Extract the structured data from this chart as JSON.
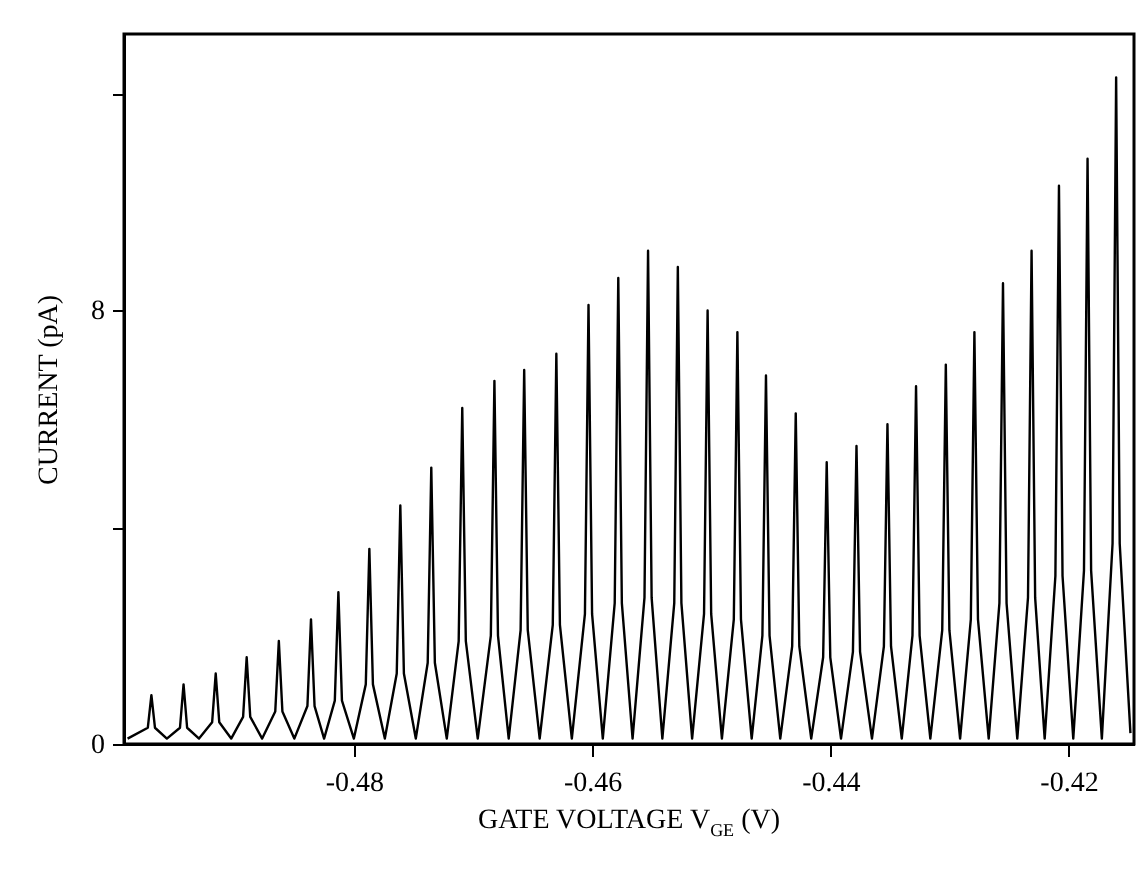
{
  "chart_data": {
    "type": "line",
    "xlabel": "GATE VOLTAGE V$_{GE}$ (V)",
    "ylabel": "CURRENT (pA)",
    "x": [
      -0.499,
      -0.4973,
      -0.497,
      -0.4967,
      -0.4957,
      -0.4946,
      -0.4943,
      -0.494,
      -0.493,
      -0.4919,
      -0.4916,
      -0.4913,
      -0.4903,
      -0.4893,
      -0.489,
      -0.4887,
      -0.4877,
      -0.4866,
      -0.4863,
      -0.486,
      -0.485,
      -0.4839,
      -0.4836,
      -0.4833,
      -0.4825,
      -0.4816,
      -0.4813,
      -0.481,
      -0.48,
      -0.479,
      -0.4787,
      -0.4784,
      -0.4774,
      -0.4764,
      -0.4761,
      -0.4758,
      -0.4748,
      -0.4738,
      -0.4735,
      -0.4732,
      -0.4722,
      -0.4712,
      -0.4709,
      -0.4706,
      -0.4696,
      -0.4685,
      -0.4682,
      -0.4679,
      -0.467,
      -0.466,
      -0.4657,
      -0.4654,
      -0.4644,
      -0.4633,
      -0.463,
      -0.4627,
      -0.4617,
      -0.4606,
      -0.4603,
      -0.46,
      -0.4591,
      -0.4581,
      -0.4578,
      -0.4575,
      -0.4566,
      -0.4556,
      -0.4553,
      -0.455,
      -0.4541,
      -0.4531,
      -0.4528,
      -0.4525,
      -0.4516,
      -0.4506,
      -0.4503,
      -0.45,
      -0.4491,
      -0.4481,
      -0.4478,
      -0.4475,
      -0.4466,
      -0.4457,
      -0.4454,
      -0.4451,
      -0.4442,
      -0.4432,
      -0.4429,
      -0.4426,
      -0.4416,
      -0.4406,
      -0.4403,
      -0.44,
      -0.4391,
      -0.4381,
      -0.4378,
      -0.4375,
      -0.4365,
      -0.4355,
      -0.4352,
      -0.4349,
      -0.434,
      -0.4331,
      -0.4328,
      -0.4325,
      -0.4316,
      -0.4306,
      -0.4303,
      -0.43,
      -0.4291,
      -0.4282,
      -0.4279,
      -0.4276,
      -0.4267,
      -0.4258,
      -0.4255,
      -0.4252,
      -0.4243,
      -0.4234,
      -0.4231,
      -0.4228,
      -0.422,
      -0.4211,
      -0.4208,
      -0.4205,
      -0.4196,
      -0.4187,
      -0.4184,
      -0.4181,
      -0.4172,
      -0.4163,
      -0.416,
      -0.4157,
      -0.4148
    ],
    "series": [
      {
        "color": "#000000",
        "values": [
          0.1,
          0.3,
          0.9,
          0.3,
          0.1,
          0.3,
          1.1,
          0.3,
          0.1,
          0.4,
          1.3,
          0.4,
          0.1,
          0.5,
          1.6,
          0.5,
          0.1,
          0.6,
          1.9,
          0.6,
          0.1,
          0.7,
          2.3,
          0.7,
          0.1,
          0.8,
          2.8,
          0.8,
          0.1,
          1.1,
          3.6,
          1.1,
          0.1,
          1.3,
          4.4,
          1.3,
          0.1,
          1.5,
          5.1,
          1.5,
          0.1,
          1.9,
          6.2,
          1.9,
          0.1,
          2.0,
          6.7,
          2.0,
          0.1,
          2.1,
          6.9,
          2.1,
          0.1,
          2.2,
          7.2,
          2.2,
          0.1,
          2.4,
          8.1,
          2.4,
          0.1,
          2.6,
          8.6,
          2.6,
          0.1,
          2.7,
          9.1,
          2.7,
          0.1,
          2.6,
          8.8,
          2.6,
          0.1,
          2.4,
          8.0,
          2.4,
          0.1,
          2.3,
          7.6,
          2.3,
          0.1,
          2.0,
          6.8,
          2.0,
          0.1,
          1.8,
          6.1,
          1.8,
          0.1,
          1.6,
          5.2,
          1.6,
          0.1,
          1.7,
          5.5,
          1.7,
          0.1,
          1.8,
          5.9,
          1.8,
          0.1,
          2.0,
          6.6,
          2.0,
          0.1,
          2.1,
          7.0,
          2.1,
          0.1,
          2.3,
          7.6,
          2.3,
          0.1,
          2.6,
          8.5,
          2.6,
          0.1,
          2.7,
          9.1,
          2.7,
          0.1,
          3.1,
          10.3,
          3.1,
          0.1,
          3.2,
          10.8,
          3.2,
          0.1,
          3.7,
          12.3,
          3.7,
          0.2
        ]
      }
    ],
    "xlim": [
      -0.4993,
      -0.4145
    ],
    "xticks": [
      -0.48,
      -0.46,
      -0.44,
      -0.42
    ],
    "ylim": [
      0,
      13.1
    ],
    "yticks": [
      0,
      {
        "value": 4,
        "label": null
      },
      8,
      {
        "value": 12,
        "label": null
      }
    ],
    "grid": false,
    "marker": "none",
    "line_style": "solid"
  }
}
